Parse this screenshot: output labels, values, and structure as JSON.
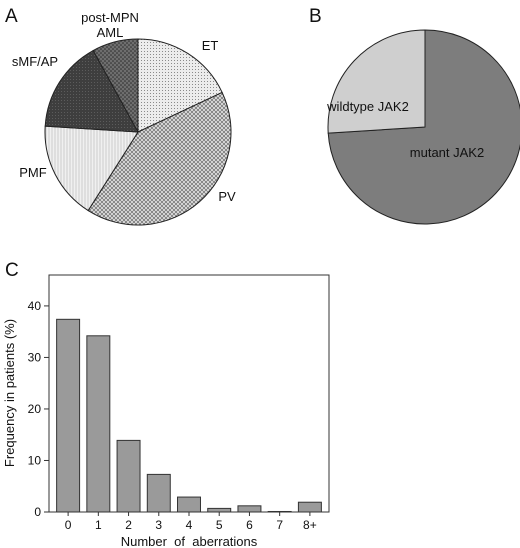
{
  "panels": {
    "a": "A",
    "b": "B",
    "c": "C"
  },
  "chart_data": [
    {
      "type": "pie",
      "title": "",
      "slices": [
        {
          "label": "ET",
          "value": 18,
          "fill": "#c8c8c8"
        },
        {
          "label": "PV",
          "value": 41,
          "fill": "#b4b4b4"
        },
        {
          "label": "PMF",
          "value": 17,
          "fill": "#e6e6e6"
        },
        {
          "label": "sMF/AP",
          "value": 16,
          "fill": "#4a4a4a"
        },
        {
          "label": "post-MPN AML",
          "value": 8,
          "fill": "#7a7a7a"
        }
      ]
    },
    {
      "type": "pie",
      "title": "",
      "slices": [
        {
          "label": "mutant JAK2",
          "value": 74,
          "fill": "#7d7d7d"
        },
        {
          "label": "wildtype JAK2",
          "value": 26,
          "fill": "#cfcfcf"
        }
      ]
    },
    {
      "type": "bar",
      "title": "",
      "categories": [
        "0",
        "1",
        "2",
        "3",
        "4",
        "5",
        "6",
        "7",
        "8+"
      ],
      "values": [
        37.4,
        34.2,
        13.9,
        7.3,
        2.9,
        0.7,
        1.2,
        0.1,
        1.9
      ],
      "xlabel": "Number  of  aberrations",
      "ylabel": "Frequency in patients (%)",
      "ylim": [
        0,
        46
      ],
      "yticks": [
        0,
        10,
        20,
        30,
        40
      ],
      "bar_color": "#9a9a9a",
      "grid": false
    }
  ]
}
